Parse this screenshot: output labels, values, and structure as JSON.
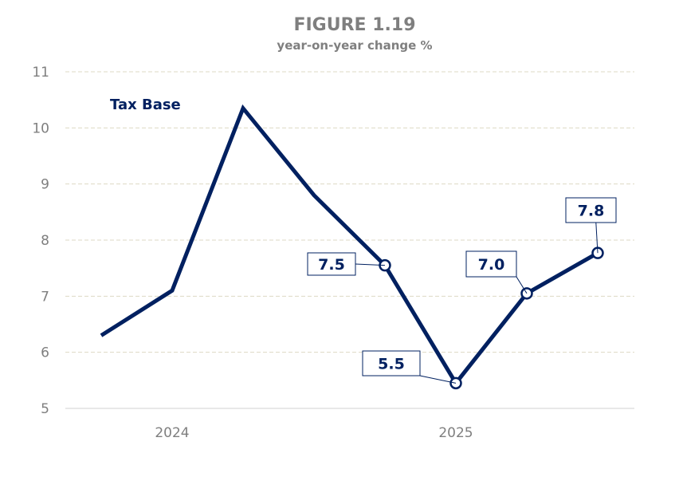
{
  "chart_data": {
    "type": "line",
    "title": "FIGURE 1.19",
    "subtitle": "year-on-year change %",
    "xlabel": "",
    "ylabel": "",
    "categories": [
      "",
      "2024",
      "",
      "",
      "",
      "2025",
      "",
      ""
    ],
    "ylim": [
      5,
      11
    ],
    "yticks": [
      "5",
      "6",
      "7",
      "8",
      "9",
      "10",
      "11"
    ],
    "grid": true,
    "series": [
      {
        "name": "Tax Base",
        "color": "#002060",
        "values": [
          6.3,
          7.1,
          10.35,
          8.8,
          7.55,
          5.45,
          7.05,
          7.77
        ],
        "data_labels": [
          null,
          null,
          null,
          null,
          "7.5",
          "5.5",
          "7.0",
          "7.8"
        ]
      }
    ]
  }
}
